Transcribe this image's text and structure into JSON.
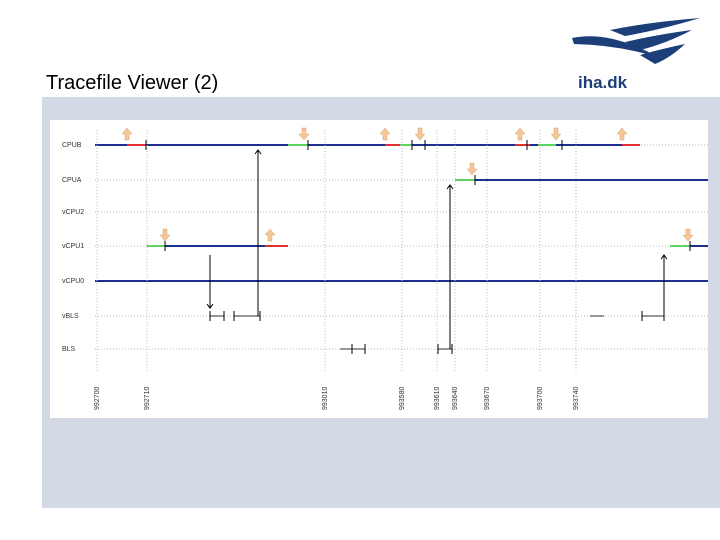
{
  "header": {
    "title": "Tracefile Viewer (2)",
    "logo": "iha.dk"
  },
  "viewer": {
    "rows": [
      "CPUB",
      "CPUA",
      "vCPU2",
      "vCPU1",
      "vCPU0",
      "vBLS",
      "BLS"
    ],
    "time_labels": [
      "992700",
      "992710",
      "993010",
      "993580",
      "993610",
      "993640",
      "993670",
      "993700",
      "993740"
    ]
  }
}
